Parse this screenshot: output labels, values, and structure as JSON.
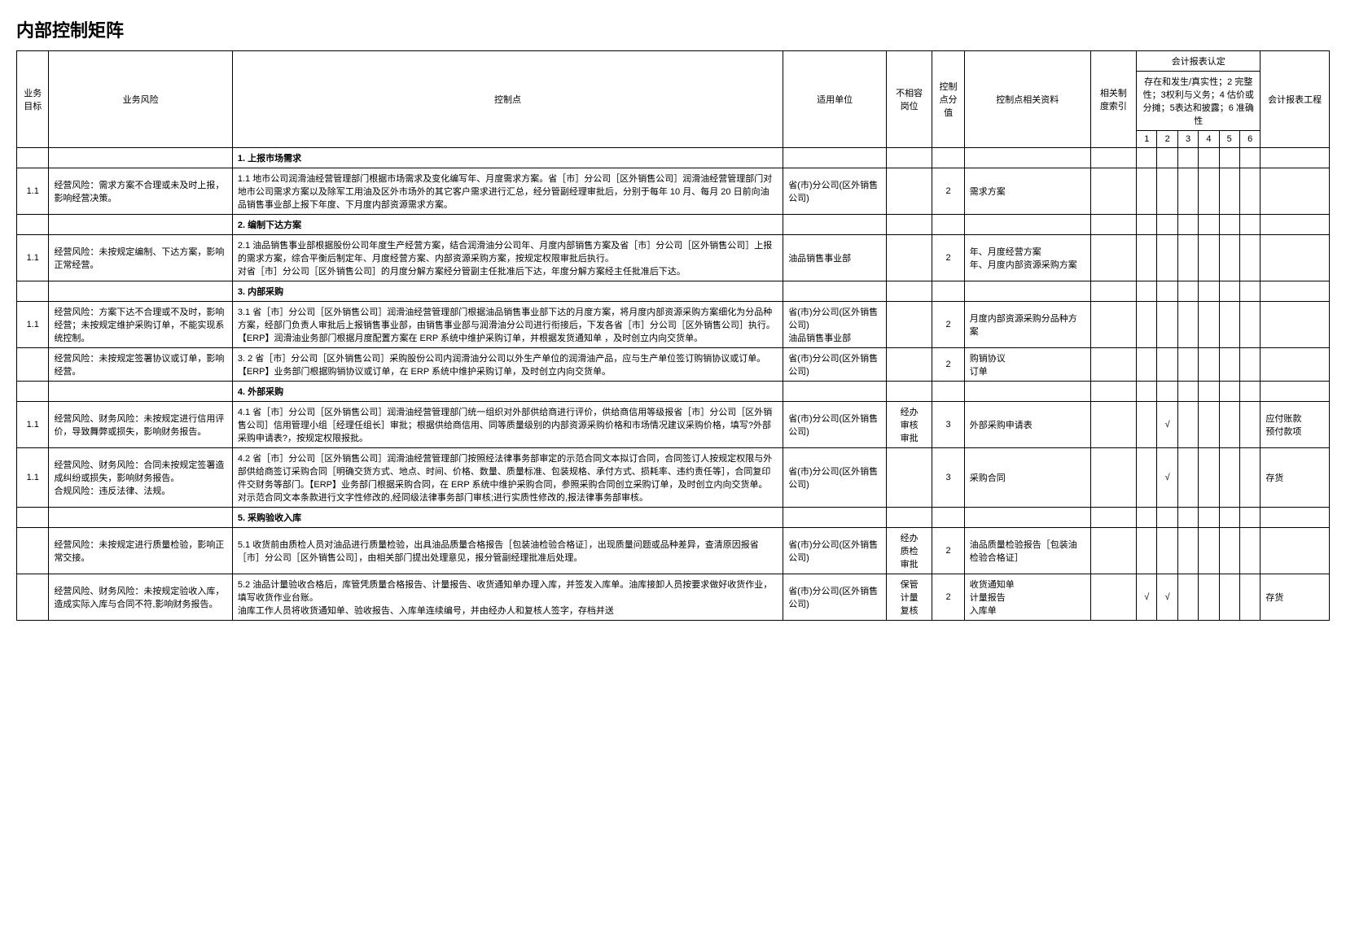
{
  "title": "内部控制矩阵",
  "columns": {
    "idx": "业务目标",
    "risk": "业务风险",
    "ctrl": "控制点",
    "unit": "适用单位",
    "incomp": "不相容岗位",
    "score": "控制点分值",
    "material": "控制点相关资料",
    "ref": "相关制度索引",
    "assert_group": "会计报表认定",
    "assert_desc": "存在和发生/真实性；2 完整性；3权利与义务；4 估价或分摊；5表达和披露；6 准确性",
    "proj": "会计报表工程"
  },
  "assert_nums": [
    "1",
    "2",
    "3",
    "4",
    "5",
    "6"
  ],
  "sections": [
    {
      "title": "1. 上报市场需求",
      "rows": [
        {
          "idx": "1.1",
          "risk": "经营风险：需求方案不合理或未及时上报，影响经营决策。",
          "ctrl": "1.1 地市公司润滑油经营管理部门根据市场需求及变化编写年、月度需求方案。省［市］分公司［区外销售公司］润滑油经营管理部门对地市公司需求方案以及除军工用油及区外市场外的其它客户需求进行汇总，经分管副经理审批后，分别于每年 10 月、每月 20 日前向油品销售事业部上报下年度、下月度内部资源需求方案。",
          "unit": "省(市)分公司(区外销售公司)",
          "incomp": "",
          "score": "2",
          "material": "需求方案",
          "ref": "",
          "asserts": [
            "",
            "",
            "",
            "",
            "",
            ""
          ],
          "proj": ""
        }
      ]
    },
    {
      "title": "2. 编制下达方案",
      "rows": [
        {
          "idx": "1.1",
          "risk": "经营风险：未按规定编制、下达方案，影响正常经营。",
          "ctrl": "2.1 油品销售事业部根据股份公司年度生产经营方案，结合润滑油分公司年、月度内部销售方案及省［市］分公司［区外销售公司］上报的需求方案，综合平衡后制定年、月度经营方案、内部资源采购方案，按规定权限审批后执行。\n对省［市］分公司［区外销售公司］的月度分解方案经分管副主任批准后下达，年度分解方案经主任批准后下达。",
          "unit": "油品销售事业部",
          "incomp": "",
          "score": "2",
          "material": "年、月度经营方案\n年、月度内部资源采购方案",
          "ref": "",
          "asserts": [
            "",
            "",
            "",
            "",
            "",
            ""
          ],
          "proj": ""
        }
      ]
    },
    {
      "title": "3. 内部采购",
      "rows": [
        {
          "idx": "1.1",
          "risk": "经营风险：方案下达不合理或不及时，影响经营；未按规定维护采购订单，不能实现系统控制。",
          "ctrl": "3.1 省［市］分公司［区外销售公司］润滑油经营管理部门根据油品销售事业部下达的月度方案，将月度内部资源采购方案细化为分品种方案，经部门负责人审批后上报销售事业部，由销售事业部与润滑油分公司进行衔接后，下发各省［市］分公司［区外销售公司］执行。【ERP】润滑油业务部门根据月度配置方案在 ERP 系统中维护采购订单，并根据发货通知单 ，及时创立内向交货单。",
          "unit": "省(市)分公司(区外销售公司)\n油品销售事业部",
          "incomp": "",
          "score": "2",
          "material": "月度内部资源采购分品种方案",
          "ref": "",
          "asserts": [
            "",
            "",
            "",
            "",
            "",
            ""
          ],
          "proj": ""
        },
        {
          "idx": "",
          "risk": "经营风险：未按规定签署协议或订单，影响经营。",
          "ctrl": "3. 2 省［市］分公司［区外销售公司］采购股份公司内润滑油分公司以外生产单位的润滑油产品，应与生产单位签订购销协议或订单。【ERP】业务部门根据购销协议或订单，在 ERP 系统中维护采购订单，及时创立内向交货单。",
          "unit": "省(市)分公司(区外销售公司)",
          "incomp": "",
          "score": "2",
          "material": "购销协议\n订单",
          "ref": "",
          "asserts": [
            "",
            "",
            "",
            "",
            "",
            ""
          ],
          "proj": ""
        }
      ]
    },
    {
      "title": "4. 外部采购",
      "rows": [
        {
          "idx": "1.1",
          "risk": "经营风险、财务风险：未按规定进行信用评价，导致舞弊或损失，影响财务报告。",
          "ctrl": "4.1 省［市］分公司［区外销售公司］润滑油经营管理部门统一组织对外部供给商进行评价，供给商信用等级报省［市］分公司［区外销售公司］信用管理小组［经理任组长］审批；根据供给商信用、同等质量级别的内部资源采购价格和市场情况建议采购价格，填写?外部采购申请表?，按规定权限报批。",
          "unit": "省(市)分公司(区外销售公司)",
          "incomp": "经办\n审核\n审批",
          "score": "3",
          "material": "外部采购申请表",
          "ref": "",
          "asserts": [
            "",
            "√",
            "",
            "",
            "",
            ""
          ],
          "proj": "应付账款\n预付款项"
        },
        {
          "idx": "1.1",
          "risk": "经营风险、财务风险：合同未按规定签署造成纠纷或损失，影响财务报告。\n合规风险：违反法律、法规。",
          "ctrl": "4.2 省［市］分公司［区外销售公司］润滑油经营管理部门按照经法律事务部审定的示范合同文本拟订合同，合同签订人按规定权限与外部供给商签订采购合同［明确交货方式、地点、时间、价格、数量、质量标准、包装规格、承付方式、损耗率、违约责任等］，合同复印件交财务等部门。【ERP】业务部门根据采购合同，在 ERP 系统中维护采购合同，参照采购合同创立采购订单，及时创立内向交货单。\n对示范合同文本条款进行文字性修改的,经同级法律事务部门审核;进行实质性修改的,报法律事务部审核。",
          "unit": "省(市)分公司(区外销售公司)",
          "incomp": "",
          "score": "3",
          "material": "采购合同",
          "ref": "",
          "asserts": [
            "",
            "√",
            "",
            "",
            "",
            ""
          ],
          "proj": "存货"
        }
      ]
    },
    {
      "title": "5. 采购验收入库",
      "rows": [
        {
          "idx": "",
          "risk": "经营风险：未按规定进行质量检验，影响正常交接。",
          "ctrl": "5.1 收货前由质检人员对油品进行质量检验，出具油品质量合格报告［包装油检验合格证］，出现质量问题或品种差异，查清原因报省［市］分公司［区外销售公司］，由相关部门提出处理意见，报分管副经理批准后处理。",
          "unit": "省(市)分公司(区外销售公司)",
          "incomp": "经办\n质检\n审批",
          "score": "2",
          "material": "油品质量检验报告［包装油检验合格证］",
          "ref": "",
          "asserts": [
            "",
            "",
            "",
            "",
            "",
            ""
          ],
          "proj": ""
        },
        {
          "idx": "",
          "risk": "经营风险、财务风险：未按规定验收入库，造成实际入库与合同不符,影响财务报告。",
          "ctrl": "5.2 油品计量验收合格后，库管凭质量合格报告、计量报告、收货通知单办理入库，并签发入库单。油库接卸人员按要求做好收货作业，填写收货作业台账。\n油库工作人员将收货通知单、验收报告、入库单连续编号，并由经办人和复核人签字，存档并送",
          "unit": "省(市)分公司(区外销售公司)",
          "incomp": "保管\n计量\n复核",
          "score": "2",
          "material": "收货通知单\n计量报告\n入库单",
          "ref": "",
          "asserts": [
            "√",
            "√",
            "",
            "",
            "",
            ""
          ],
          "proj": "存货"
        }
      ]
    }
  ]
}
